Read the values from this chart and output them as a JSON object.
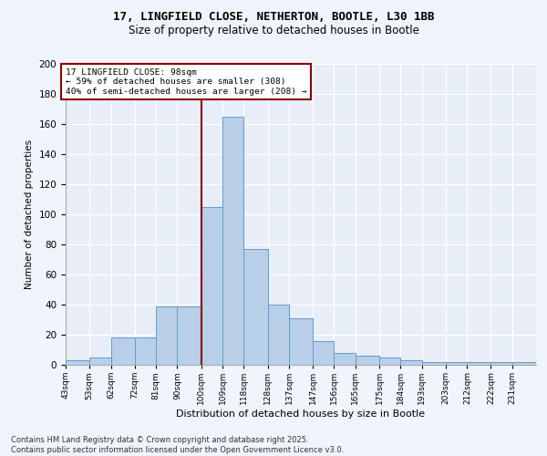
{
  "title_line1": "17, LINGFIELD CLOSE, NETHERTON, BOOTLE, L30 1BB",
  "title_line2": "Size of property relative to detached houses in Bootle",
  "xlabel": "Distribution of detached houses by size in Bootle",
  "ylabel": "Number of detached properties",
  "categories": [
    "43sqm",
    "53sqm",
    "62sqm",
    "72sqm",
    "81sqm",
    "90sqm",
    "100sqm",
    "109sqm",
    "118sqm",
    "128sqm",
    "137sqm",
    "147sqm",
    "156sqm",
    "165sqm",
    "175sqm",
    "184sqm",
    "193sqm",
    "203sqm",
    "212sqm",
    "222sqm",
    "231sqm"
  ],
  "bar_h": [
    3,
    5,
    18,
    18,
    39,
    39,
    105,
    165,
    77,
    40,
    31,
    16,
    8,
    6,
    5,
    3,
    2,
    2,
    2,
    2,
    2
  ],
  "bar_color": "#b8cfe8",
  "bar_edge_color": "#6699cc",
  "vline_x": 100,
  "vline_color": "#8b0000",
  "annotation_text": "17 LINGFIELD CLOSE: 98sqm\n← 59% of detached houses are smaller (308)\n40% of semi-detached houses are larger (208) →",
  "annotation_box_color": "#8b0000",
  "ylim": [
    0,
    200
  ],
  "yticks": [
    0,
    20,
    40,
    60,
    80,
    100,
    120,
    140,
    160,
    180,
    200
  ],
  "background_color": "#e8eef8",
  "grid_color": "#ffffff",
  "footer": "Contains HM Land Registry data © Crown copyright and database right 2025.\nContains public sector information licensed under the Open Government Licence v3.0.",
  "bin_edges": [
    43,
    53,
    62,
    72,
    81,
    90,
    100,
    109,
    118,
    128,
    137,
    147,
    156,
    165,
    175,
    184,
    193,
    203,
    212,
    222,
    231,
    241
  ],
  "fig_bg": "#f0f4fc"
}
